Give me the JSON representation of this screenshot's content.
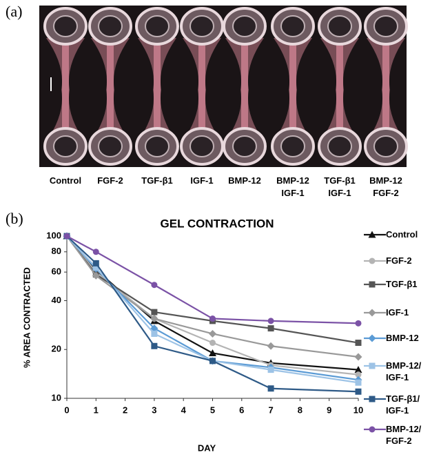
{
  "panel_a": {
    "label": "(a)",
    "samples": [
      "Control",
      "FGF-2",
      "TGF-β1",
      "IGF-1",
      "BMP-12",
      "BMP-12\nIGF-1",
      "TGF-β1\nIGF-1",
      "BMP-12\nFGF-2"
    ]
  },
  "panel_b": {
    "label": "(b)"
  },
  "chart_data": {
    "type": "line",
    "title": "GEL CONTRACTION",
    "x_label": "DAY",
    "y_label": "% AREA CONTRACTED",
    "x": [
      0,
      1,
      3,
      5,
      7,
      10
    ],
    "xlim": [
      0,
      10
    ],
    "xticks": [
      0,
      1,
      2,
      3,
      4,
      5,
      6,
      7,
      8,
      9,
      10
    ],
    "ylim": [
      10,
      100
    ],
    "yticks": [
      10,
      20,
      40,
      60,
      80,
      100
    ],
    "y_scale": "log",
    "legend": "right",
    "series": [
      {
        "name": "Control",
        "color": "#111111",
        "marker": "triangle",
        "values": [
          100,
          62,
          30,
          19,
          16.5,
          15
        ]
      },
      {
        "name": "FGF-2",
        "color": "#b4b4b4",
        "marker": "circle",
        "values": [
          100,
          60,
          31,
          22,
          16,
          14
        ]
      },
      {
        "name": "TGF-β1",
        "color": "#555555",
        "marker": "square",
        "values": [
          100,
          58,
          34,
          30,
          27,
          22
        ]
      },
      {
        "name": "IGF-1",
        "color": "#999999",
        "marker": "diamond",
        "values": [
          100,
          57,
          31,
          25,
          21,
          18
        ]
      },
      {
        "name": "BMP-12",
        "color": "#5b9bd5",
        "marker": "diamond",
        "values": [
          100,
          63,
          27,
          17,
          15.5,
          13
        ]
      },
      {
        "name": "BMP-12/\nIGF-1",
        "color": "#9dc3e6",
        "marker": "square",
        "values": [
          100,
          64,
          25,
          17,
          15,
          12.5
        ]
      },
      {
        "name": "TGF-β1/\nIGF-1",
        "color": "#2e5a87",
        "marker": "square",
        "values": [
          100,
          68,
          21,
          17,
          11.5,
          11
        ]
      },
      {
        "name": "BMP-12/\nFGF-2",
        "color": "#7b52a6",
        "marker": "circle",
        "values": [
          100,
          80,
          50,
          31,
          30,
          29
        ]
      }
    ]
  }
}
